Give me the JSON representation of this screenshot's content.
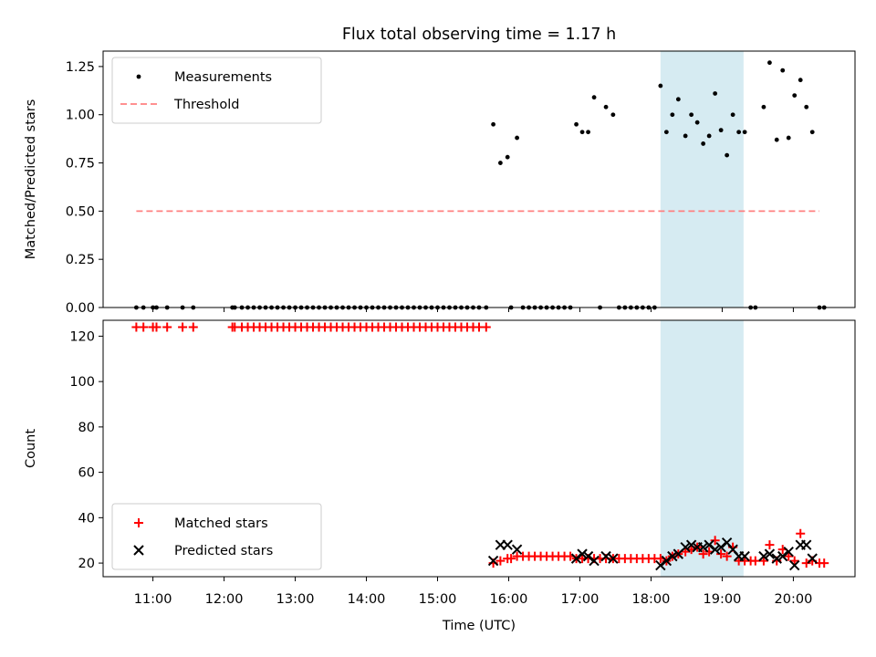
{
  "title": "Flux total observing time = 1.17 h",
  "chart_data": [
    {
      "type": "scatter",
      "panel": "top",
      "ylabel": "Matched/Predicted stars",
      "ylim": [
        0,
        1.33
      ],
      "yticks": [
        "0.00",
        "0.25",
        "0.50",
        "0.75",
        "1.00",
        "1.25"
      ],
      "grid": false,
      "legend_position": "upper-left",
      "shaded_interval": [
        "18:08",
        "19:18"
      ],
      "series": [
        {
          "name": "Measurements",
          "marker": "dot",
          "color": "#000000",
          "points": [
            [
              "10:46",
              0
            ],
            [
              "10:52",
              0
            ],
            [
              "11:00",
              0
            ],
            [
              "11:03",
              0
            ],
            [
              "11:12",
              0
            ],
            [
              "11:25",
              0
            ],
            [
              "11:34",
              0
            ],
            [
              "12:07",
              0
            ],
            [
              "12:09",
              0
            ],
            [
              "12:15",
              0
            ],
            [
              "12:20",
              0
            ],
            [
              "12:25",
              0
            ],
            [
              "12:30",
              0
            ],
            [
              "12:35",
              0
            ],
            [
              "12:40",
              0
            ],
            [
              "12:45",
              0
            ],
            [
              "12:50",
              0
            ],
            [
              "12:55",
              0
            ],
            [
              "13:00",
              0
            ],
            [
              "13:05",
              0
            ],
            [
              "13:10",
              0
            ],
            [
              "13:15",
              0
            ],
            [
              "13:20",
              0
            ],
            [
              "13:25",
              0
            ],
            [
              "13:30",
              0
            ],
            [
              "13:35",
              0
            ],
            [
              "13:40",
              0
            ],
            [
              "13:45",
              0
            ],
            [
              "13:50",
              0
            ],
            [
              "13:55",
              0
            ],
            [
              "14:00",
              0
            ],
            [
              "14:05",
              0
            ],
            [
              "14:10",
              0
            ],
            [
              "14:15",
              0
            ],
            [
              "14:20",
              0
            ],
            [
              "14:25",
              0
            ],
            [
              "14:30",
              0
            ],
            [
              "14:35",
              0
            ],
            [
              "14:40",
              0
            ],
            [
              "14:45",
              0
            ],
            [
              "14:50",
              0
            ],
            [
              "14:55",
              0
            ],
            [
              "15:00",
              0
            ],
            [
              "15:05",
              0
            ],
            [
              "15:10",
              0
            ],
            [
              "15:15",
              0
            ],
            [
              "15:20",
              0
            ],
            [
              "15:25",
              0
            ],
            [
              "15:30",
              0
            ],
            [
              "15:35",
              0
            ],
            [
              "15:41",
              0
            ],
            [
              "15:47",
              0.95
            ],
            [
              "15:53",
              0.75
            ],
            [
              "15:59",
              0.78
            ],
            [
              "16:02",
              0
            ],
            [
              "16:07",
              0.88
            ],
            [
              "16:12",
              0
            ],
            [
              "16:17",
              0
            ],
            [
              "16:22",
              0
            ],
            [
              "16:27",
              0
            ],
            [
              "16:32",
              0
            ],
            [
              "16:37",
              0
            ],
            [
              "16:42",
              0
            ],
            [
              "16:47",
              0
            ],
            [
              "16:52",
              0
            ],
            [
              "16:57",
              0.95
            ],
            [
              "17:02",
              0.91
            ],
            [
              "17:07",
              0.91
            ],
            [
              "17:12",
              1.09
            ],
            [
              "17:17",
              0
            ],
            [
              "17:22",
              1.04
            ],
            [
              "17:28",
              1.0
            ],
            [
              "17:33",
              0
            ],
            [
              "17:38",
              0
            ],
            [
              "17:43",
              0
            ],
            [
              "17:48",
              0
            ],
            [
              "17:53",
              0
            ],
            [
              "17:58",
              0
            ],
            [
              "18:03",
              0
            ],
            [
              "18:08",
              1.15
            ],
            [
              "18:13",
              0.91
            ],
            [
              "18:18",
              1.0
            ],
            [
              "18:23",
              1.08
            ],
            [
              "18:29",
              0.89
            ],
            [
              "18:34",
              1.0
            ],
            [
              "18:39",
              0.96
            ],
            [
              "18:44",
              0.85
            ],
            [
              "18:49",
              0.89
            ],
            [
              "18:54",
              1.11
            ],
            [
              "18:59",
              0.92
            ],
            [
              "19:04",
              0.79
            ],
            [
              "19:09",
              1.0
            ],
            [
              "19:14",
              0.91
            ],
            [
              "19:19",
              0.91
            ],
            [
              "19:24",
              0
            ],
            [
              "19:28",
              0
            ],
            [
              "19:35",
              1.04
            ],
            [
              "19:40",
              1.27
            ],
            [
              "19:46",
              0.87
            ],
            [
              "19:51",
              1.23
            ],
            [
              "19:56",
              0.88
            ],
            [
              "20:01",
              1.1
            ],
            [
              "20:06",
              1.18
            ],
            [
              "20:11",
              1.04
            ],
            [
              "20:16",
              0.91
            ],
            [
              "20:22",
              0
            ],
            [
              "20:26",
              0
            ]
          ]
        },
        {
          "name": "Threshold",
          "marker": "dashed-line",
          "color": "#ff8080",
          "points": [
            [
              "10:46",
              0.5
            ],
            [
              "20:22",
              0.5
            ]
          ]
        }
      ]
    },
    {
      "type": "scatter",
      "panel": "bottom",
      "xlabel": "Time (UTC)",
      "ylabel": "Count",
      "xlim": [
        "10:18",
        "20:52"
      ],
      "xticks": [
        "11:00",
        "12:00",
        "13:00",
        "14:00",
        "15:00",
        "16:00",
        "17:00",
        "18:00",
        "19:00",
        "20:00"
      ],
      "ylim": [
        14,
        127
      ],
      "yticks": [
        "20",
        "40",
        "60",
        "80",
        "100",
        "120"
      ],
      "grid": false,
      "legend_position": "lower-left",
      "shaded_interval": [
        "18:08",
        "19:18"
      ],
      "series": [
        {
          "name": "Matched stars",
          "marker": "plus",
          "color": "#ff0000",
          "points": [
            [
              "10:46",
              124
            ],
            [
              "10:52",
              124
            ],
            [
              "11:00",
              124
            ],
            [
              "11:03",
              124
            ],
            [
              "11:12",
              124
            ],
            [
              "11:25",
              124
            ],
            [
              "11:34",
              124
            ],
            [
              "12:07",
              124
            ],
            [
              "12:09",
              124
            ],
            [
              "12:15",
              124
            ],
            [
              "12:20",
              124
            ],
            [
              "12:25",
              124
            ],
            [
              "12:30",
              124
            ],
            [
              "12:35",
              124
            ],
            [
              "12:40",
              124
            ],
            [
              "12:45",
              124
            ],
            [
              "12:50",
              124
            ],
            [
              "12:55",
              124
            ],
            [
              "13:00",
              124
            ],
            [
              "13:05",
              124
            ],
            [
              "13:10",
              124
            ],
            [
              "13:15",
              124
            ],
            [
              "13:20",
              124
            ],
            [
              "13:25",
              124
            ],
            [
              "13:30",
              124
            ],
            [
              "13:35",
              124
            ],
            [
              "13:40",
              124
            ],
            [
              "13:45",
              124
            ],
            [
              "13:50",
              124
            ],
            [
              "13:55",
              124
            ],
            [
              "14:00",
              124
            ],
            [
              "14:05",
              124
            ],
            [
              "14:10",
              124
            ],
            [
              "14:15",
              124
            ],
            [
              "14:20",
              124
            ],
            [
              "14:25",
              124
            ],
            [
              "14:30",
              124
            ],
            [
              "14:35",
              124
            ],
            [
              "14:40",
              124
            ],
            [
              "14:45",
              124
            ],
            [
              "14:50",
              124
            ],
            [
              "14:55",
              124
            ],
            [
              "15:00",
              124
            ],
            [
              "15:05",
              124
            ],
            [
              "15:10",
              124
            ],
            [
              "15:15",
              124
            ],
            [
              "15:20",
              124
            ],
            [
              "15:25",
              124
            ],
            [
              "15:30",
              124
            ],
            [
              "15:35",
              124
            ],
            [
              "15:41",
              124
            ],
            [
              "15:47",
              20
            ],
            [
              "15:53",
              21
            ],
            [
              "15:59",
              22
            ],
            [
              "16:02",
              22
            ],
            [
              "16:07",
              23
            ],
            [
              "16:12",
              23
            ],
            [
              "16:17",
              23
            ],
            [
              "16:22",
              23
            ],
            [
              "16:27",
              23
            ],
            [
              "16:32",
              23
            ],
            [
              "16:37",
              23
            ],
            [
              "16:42",
              23
            ],
            [
              "16:47",
              23
            ],
            [
              "16:52",
              23
            ],
            [
              "16:57",
              22
            ],
            [
              "17:02",
              22
            ],
            [
              "17:07",
              22
            ],
            [
              "17:12",
              22
            ],
            [
              "17:17",
              22
            ],
            [
              "17:22",
              22
            ],
            [
              "17:28",
              22
            ],
            [
              "17:33",
              22
            ],
            [
              "17:38",
              22
            ],
            [
              "17:43",
              22
            ],
            [
              "17:48",
              22
            ],
            [
              "17:53",
              22
            ],
            [
              "17:58",
              22
            ],
            [
              "18:03",
              22
            ],
            [
              "18:08",
              22
            ],
            [
              "18:13",
              21
            ],
            [
              "18:18",
              23
            ],
            [
              "18:23",
              24
            ],
            [
              "18:29",
              25
            ],
            [
              "18:34",
              26
            ],
            [
              "18:39",
              27
            ],
            [
              "18:44",
              24
            ],
            [
              "18:49",
              25
            ],
            [
              "18:54",
              30
            ],
            [
              "18:59",
              24
            ],
            [
              "19:04",
              23
            ],
            [
              "19:09",
              27
            ],
            [
              "19:14",
              21
            ],
            [
              "19:19",
              21
            ],
            [
              "19:24",
              21
            ],
            [
              "19:28",
              21
            ],
            [
              "19:35",
              21
            ],
            [
              "19:40",
              28
            ],
            [
              "19:46",
              21
            ],
            [
              "19:51",
              26
            ],
            [
              "19:56",
              23
            ],
            [
              "20:01",
              21
            ],
            [
              "20:06",
              33
            ],
            [
              "20:11",
              20
            ],
            [
              "20:16",
              21
            ],
            [
              "20:22",
              20
            ],
            [
              "20:26",
              20
            ]
          ]
        },
        {
          "name": "Predicted stars",
          "marker": "x",
          "color": "#000000",
          "points": [
            [
              "15:47",
              21
            ],
            [
              "15:53",
              28
            ],
            [
              "15:59",
              28
            ],
            [
              "16:07",
              26
            ],
            [
              "16:57",
              22
            ],
            [
              "17:02",
              24
            ],
            [
              "17:07",
              23
            ],
            [
              "17:12",
              21
            ],
            [
              "17:22",
              23
            ],
            [
              "17:28",
              22
            ],
            [
              "18:08",
              19
            ],
            [
              "18:13",
              21
            ],
            [
              "18:18",
              23
            ],
            [
              "18:23",
              24
            ],
            [
              "18:29",
              27
            ],
            [
              "18:34",
              28
            ],
            [
              "18:39",
              27
            ],
            [
              "18:44",
              27
            ],
            [
              "18:49",
              28
            ],
            [
              "18:54",
              26
            ],
            [
              "18:59",
              27
            ],
            [
              "19:04",
              29
            ],
            [
              "19:09",
              26
            ],
            [
              "19:14",
              23
            ],
            [
              "19:19",
              23
            ],
            [
              "19:35",
              23
            ],
            [
              "19:40",
              24
            ],
            [
              "19:46",
              22
            ],
            [
              "19:51",
              23
            ],
            [
              "19:56",
              25
            ],
            [
              "20:01",
              19
            ],
            [
              "20:06",
              28
            ],
            [
              "20:11",
              28
            ],
            [
              "20:16",
              22
            ]
          ]
        }
      ]
    }
  ]
}
